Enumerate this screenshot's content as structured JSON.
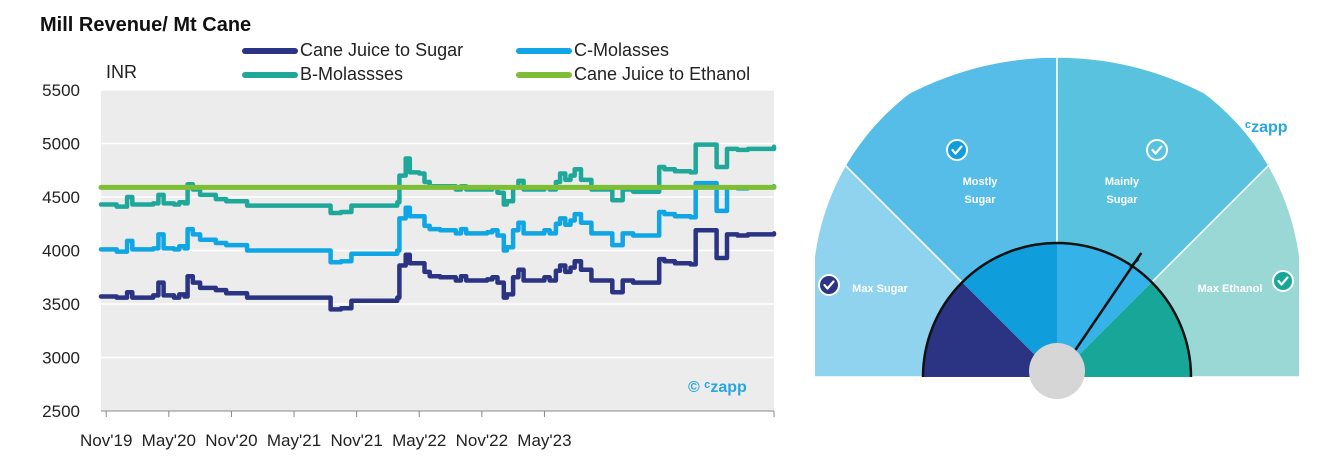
{
  "title": "Mill Revenue/ Mt Cane",
  "y_unit": "INR",
  "watermark_left": "© ᶜzapp",
  "watermark_right": "ᶜzapp",
  "colors": {
    "sugar": "#2b3383",
    "cmol": "#10a5e4",
    "bmol": "#1fa899",
    "ethanol": "#7ebe35",
    "plot_bg": "#ececec",
    "brand": "#27a6df"
  },
  "chart_data": [
    {
      "type": "line",
      "title": "Mill Revenue/ Mt Cane",
      "ylabel": "INR",
      "ylim": [
        2500,
        5500
      ],
      "yticks": [
        2500,
        3000,
        3500,
        4000,
        4500,
        5000,
        5500
      ],
      "xticks": [
        "Nov'19",
        "May'20",
        "Nov'20",
        "May'21",
        "Nov'21",
        "May'22",
        "Nov'22",
        "May'23"
      ],
      "x_months_span": [
        0,
        49.5
      ],
      "grid": true,
      "legend": "top",
      "series": [
        {
          "name": "Cane Juice to Sugar",
          "color_key": "sugar",
          "points": [
            [
              0,
              3570
            ],
            [
              1.5,
              3560
            ],
            [
              2.5,
              3610
            ],
            [
              3,
              3560
            ],
            [
              5,
              3580
            ],
            [
              5.5,
              3700
            ],
            [
              6,
              3580
            ],
            [
              7,
              3560
            ],
            [
              7.5,
              3590
            ],
            [
              8,
              3570
            ],
            [
              8.3,
              3760
            ],
            [
              8.8,
              3700
            ],
            [
              9.5,
              3650
            ],
            [
              11,
              3630
            ],
            [
              12,
              3600
            ],
            [
              14,
              3560
            ],
            [
              16,
              3560
            ],
            [
              17,
              3560
            ],
            [
              18,
              3560
            ],
            [
              19,
              3560
            ],
            [
              20,
              3560
            ],
            [
              22,
              3450
            ],
            [
              23,
              3460
            ],
            [
              24,
              3530
            ],
            [
              25,
              3530
            ],
            [
              26,
              3530
            ],
            [
              27,
              3530
            ],
            [
              28.4,
              3560
            ],
            [
              28.6,
              3860
            ],
            [
              29.2,
              3960
            ],
            [
              29.6,
              3880
            ],
            [
              30.5,
              3880
            ],
            [
              31,
              3800
            ],
            [
              31.5,
              3760
            ],
            [
              32.5,
              3750
            ],
            [
              34,
              3720
            ],
            [
              34.5,
              3760
            ],
            [
              35,
              3720
            ],
            [
              37,
              3730
            ],
            [
              37.5,
              3750
            ],
            [
              38,
              3700
            ],
            [
              38.6,
              3560
            ],
            [
              38.9,
              3590
            ],
            [
              39.5,
              3750
            ],
            [
              40,
              3820
            ],
            [
              40.5,
              3720
            ],
            [
              42,
              3720
            ],
            [
              42.5,
              3750
            ],
            [
              43,
              3720
            ],
            [
              43.6,
              3810
            ],
            [
              44,
              3860
            ],
            [
              44.5,
              3800
            ],
            [
              45,
              3840
            ],
            [
              45.4,
              3900
            ],
            [
              46,
              3820
            ],
            [
              47,
              3720
            ],
            [
              48,
              3720
            ],
            [
              49,
              3610
            ],
            [
              50,
              3720
            ],
            [
              51,
              3700
            ],
            [
              52,
              3700
            ],
            [
              53,
              3700
            ],
            [
              53.5,
              3920
            ],
            [
              54,
              3900
            ],
            [
              55,
              3880
            ],
            [
              56,
              3880
            ],
            [
              56.5,
              3870
            ],
            [
              57,
              4190
            ],
            [
              58,
              4190
            ],
            [
              58.5,
              4190
            ],
            [
              59,
              3930
            ],
            [
              59.5,
              3930
            ],
            [
              60,
              4150
            ],
            [
              61,
              4140
            ],
            [
              62,
              4150
            ],
            [
              63,
              4150
            ],
            [
              64.5,
              4160
            ]
          ]
        },
        {
          "name": "C-Molasses",
          "color_key": "cmol",
          "points": [
            [
              0,
              4010
            ],
            [
              1.5,
              3990
            ],
            [
              2.5,
              4090
            ],
            [
              3,
              4010
            ],
            [
              5,
              4020
            ],
            [
              5.5,
              4150
            ],
            [
              6,
              4020
            ],
            [
              7,
              4010
            ],
            [
              7.5,
              4040
            ],
            [
              8,
              4020
            ],
            [
              8.3,
              4200
            ],
            [
              8.8,
              4150
            ],
            [
              9.5,
              4100
            ],
            [
              11,
              4070
            ],
            [
              12,
              4050
            ],
            [
              14,
              4000
            ],
            [
              16,
              4000
            ],
            [
              17,
              4000
            ],
            [
              18,
              4000
            ],
            [
              19,
              4000
            ],
            [
              20,
              4000
            ],
            [
              22,
              3890
            ],
            [
              23,
              3900
            ],
            [
              24,
              3970
            ],
            [
              25,
              3970
            ],
            [
              26,
              3970
            ],
            [
              27,
              3970
            ],
            [
              28.4,
              4000
            ],
            [
              28.6,
              4300
            ],
            [
              29.2,
              4400
            ],
            [
              29.6,
              4320
            ],
            [
              30.5,
              4320
            ],
            [
              31,
              4230
            ],
            [
              31.5,
              4200
            ],
            [
              32.5,
              4190
            ],
            [
              34,
              4160
            ],
            [
              34.5,
              4200
            ],
            [
              35,
              4160
            ],
            [
              37,
              4170
            ],
            [
              37.5,
              4190
            ],
            [
              38,
              4140
            ],
            [
              38.6,
              4000
            ],
            [
              38.9,
              4030
            ],
            [
              39.5,
              4190
            ],
            [
              40,
              4260
            ],
            [
              40.5,
              4160
            ],
            [
              42,
              4160
            ],
            [
              42.5,
              4190
            ],
            [
              43,
              4160
            ],
            [
              43.6,
              4250
            ],
            [
              44,
              4300
            ],
            [
              44.5,
              4240
            ],
            [
              45,
              4280
            ],
            [
              45.4,
              4340
            ],
            [
              46,
              4260
            ],
            [
              47,
              4160
            ],
            [
              48,
              4160
            ],
            [
              49,
              4050
            ],
            [
              50,
              4160
            ],
            [
              51,
              4140
            ],
            [
              52,
              4140
            ],
            [
              53,
              4140
            ],
            [
              53.5,
              4360
            ],
            [
              54,
              4340
            ],
            [
              55,
              4320
            ],
            [
              56,
              4320
            ],
            [
              56.5,
              4310
            ],
            [
              57,
              4630
            ],
            [
              58,
              4630
            ],
            [
              58.5,
              4630
            ],
            [
              59,
              4370
            ],
            [
              59.5,
              4370
            ],
            [
              60,
              4590
            ],
            [
              61,
              4580
            ],
            [
              62,
              4590
            ],
            [
              63,
              4590
            ],
            [
              64.5,
              4600
            ]
          ]
        },
        {
          "name": "B-Molassses",
          "color_key": "bmol",
          "points": [
            [
              0,
              4430
            ],
            [
              1.5,
              4410
            ],
            [
              2.5,
              4500
            ],
            [
              3,
              4430
            ],
            [
              5,
              4440
            ],
            [
              5.5,
              4520
            ],
            [
              6,
              4440
            ],
            [
              7,
              4430
            ],
            [
              7.5,
              4450
            ],
            [
              8,
              4440
            ],
            [
              8.3,
              4620
            ],
            [
              8.8,
              4570
            ],
            [
              9.5,
              4520
            ],
            [
              11,
              4480
            ],
            [
              12,
              4460
            ],
            [
              14,
              4420
            ],
            [
              16,
              4420
            ],
            [
              17,
              4420
            ],
            [
              18,
              4420
            ],
            [
              19,
              4420
            ],
            [
              20,
              4420
            ],
            [
              22,
              4350
            ],
            [
              23,
              4360
            ],
            [
              24,
              4420
            ],
            [
              25,
              4420
            ],
            [
              26,
              4420
            ],
            [
              27,
              4420
            ],
            [
              28.4,
              4450
            ],
            [
              28.6,
              4700
            ],
            [
              29.2,
              4860
            ],
            [
              29.6,
              4730
            ],
            [
              30.5,
              4720
            ],
            [
              31,
              4640
            ],
            [
              31.5,
              4600
            ],
            [
              32.5,
              4600
            ],
            [
              34,
              4570
            ],
            [
              34.5,
              4600
            ],
            [
              35,
              4570
            ],
            [
              37,
              4570
            ],
            [
              37.5,
              4590
            ],
            [
              38,
              4540
            ],
            [
              38.6,
              4430
            ],
            [
              38.9,
              4460
            ],
            [
              39.5,
              4590
            ],
            [
              40,
              4650
            ],
            [
              40.5,
              4570
            ],
            [
              42,
              4570
            ],
            [
              42.5,
              4590
            ],
            [
              43,
              4570
            ],
            [
              43.6,
              4640
            ],
            [
              44,
              4720
            ],
            [
              44.5,
              4660
            ],
            [
              45,
              4700
            ],
            [
              45.4,
              4760
            ],
            [
              46,
              4660
            ],
            [
              47,
              4570
            ],
            [
              48,
              4570
            ],
            [
              49,
              4470
            ],
            [
              50,
              4570
            ],
            [
              51,
              4550
            ],
            [
              52,
              4550
            ],
            [
              53,
              4550
            ],
            [
              53.5,
              4780
            ],
            [
              54,
              4760
            ],
            [
              55,
              4740
            ],
            [
              56,
              4740
            ],
            [
              56.5,
              4730
            ],
            [
              57,
              4990
            ],
            [
              58,
              4990
            ],
            [
              58.5,
              4990
            ],
            [
              59,
              4780
            ],
            [
              59.5,
              4780
            ],
            [
              60,
              4950
            ],
            [
              61,
              4940
            ],
            [
              62,
              4950
            ],
            [
              63,
              4950
            ],
            [
              64.5,
              4970
            ]
          ]
        },
        {
          "name": "Cane Juice to Ethanol",
          "color_key": "ethanol",
          "points": [
            [
              0,
              4590
            ],
            [
              64.5,
              4590
            ]
          ]
        }
      ]
    },
    {
      "type": "gauge",
      "segments": [
        {
          "label": "Max Sugar",
          "checked": true
        },
        {
          "label": "Mostly Sugar",
          "checked": true
        },
        {
          "label": "Mainly Sugar",
          "checked": true
        },
        {
          "label": "Max Ethanol",
          "checked": true
        }
      ],
      "needle_fraction": 0.69
    }
  ]
}
